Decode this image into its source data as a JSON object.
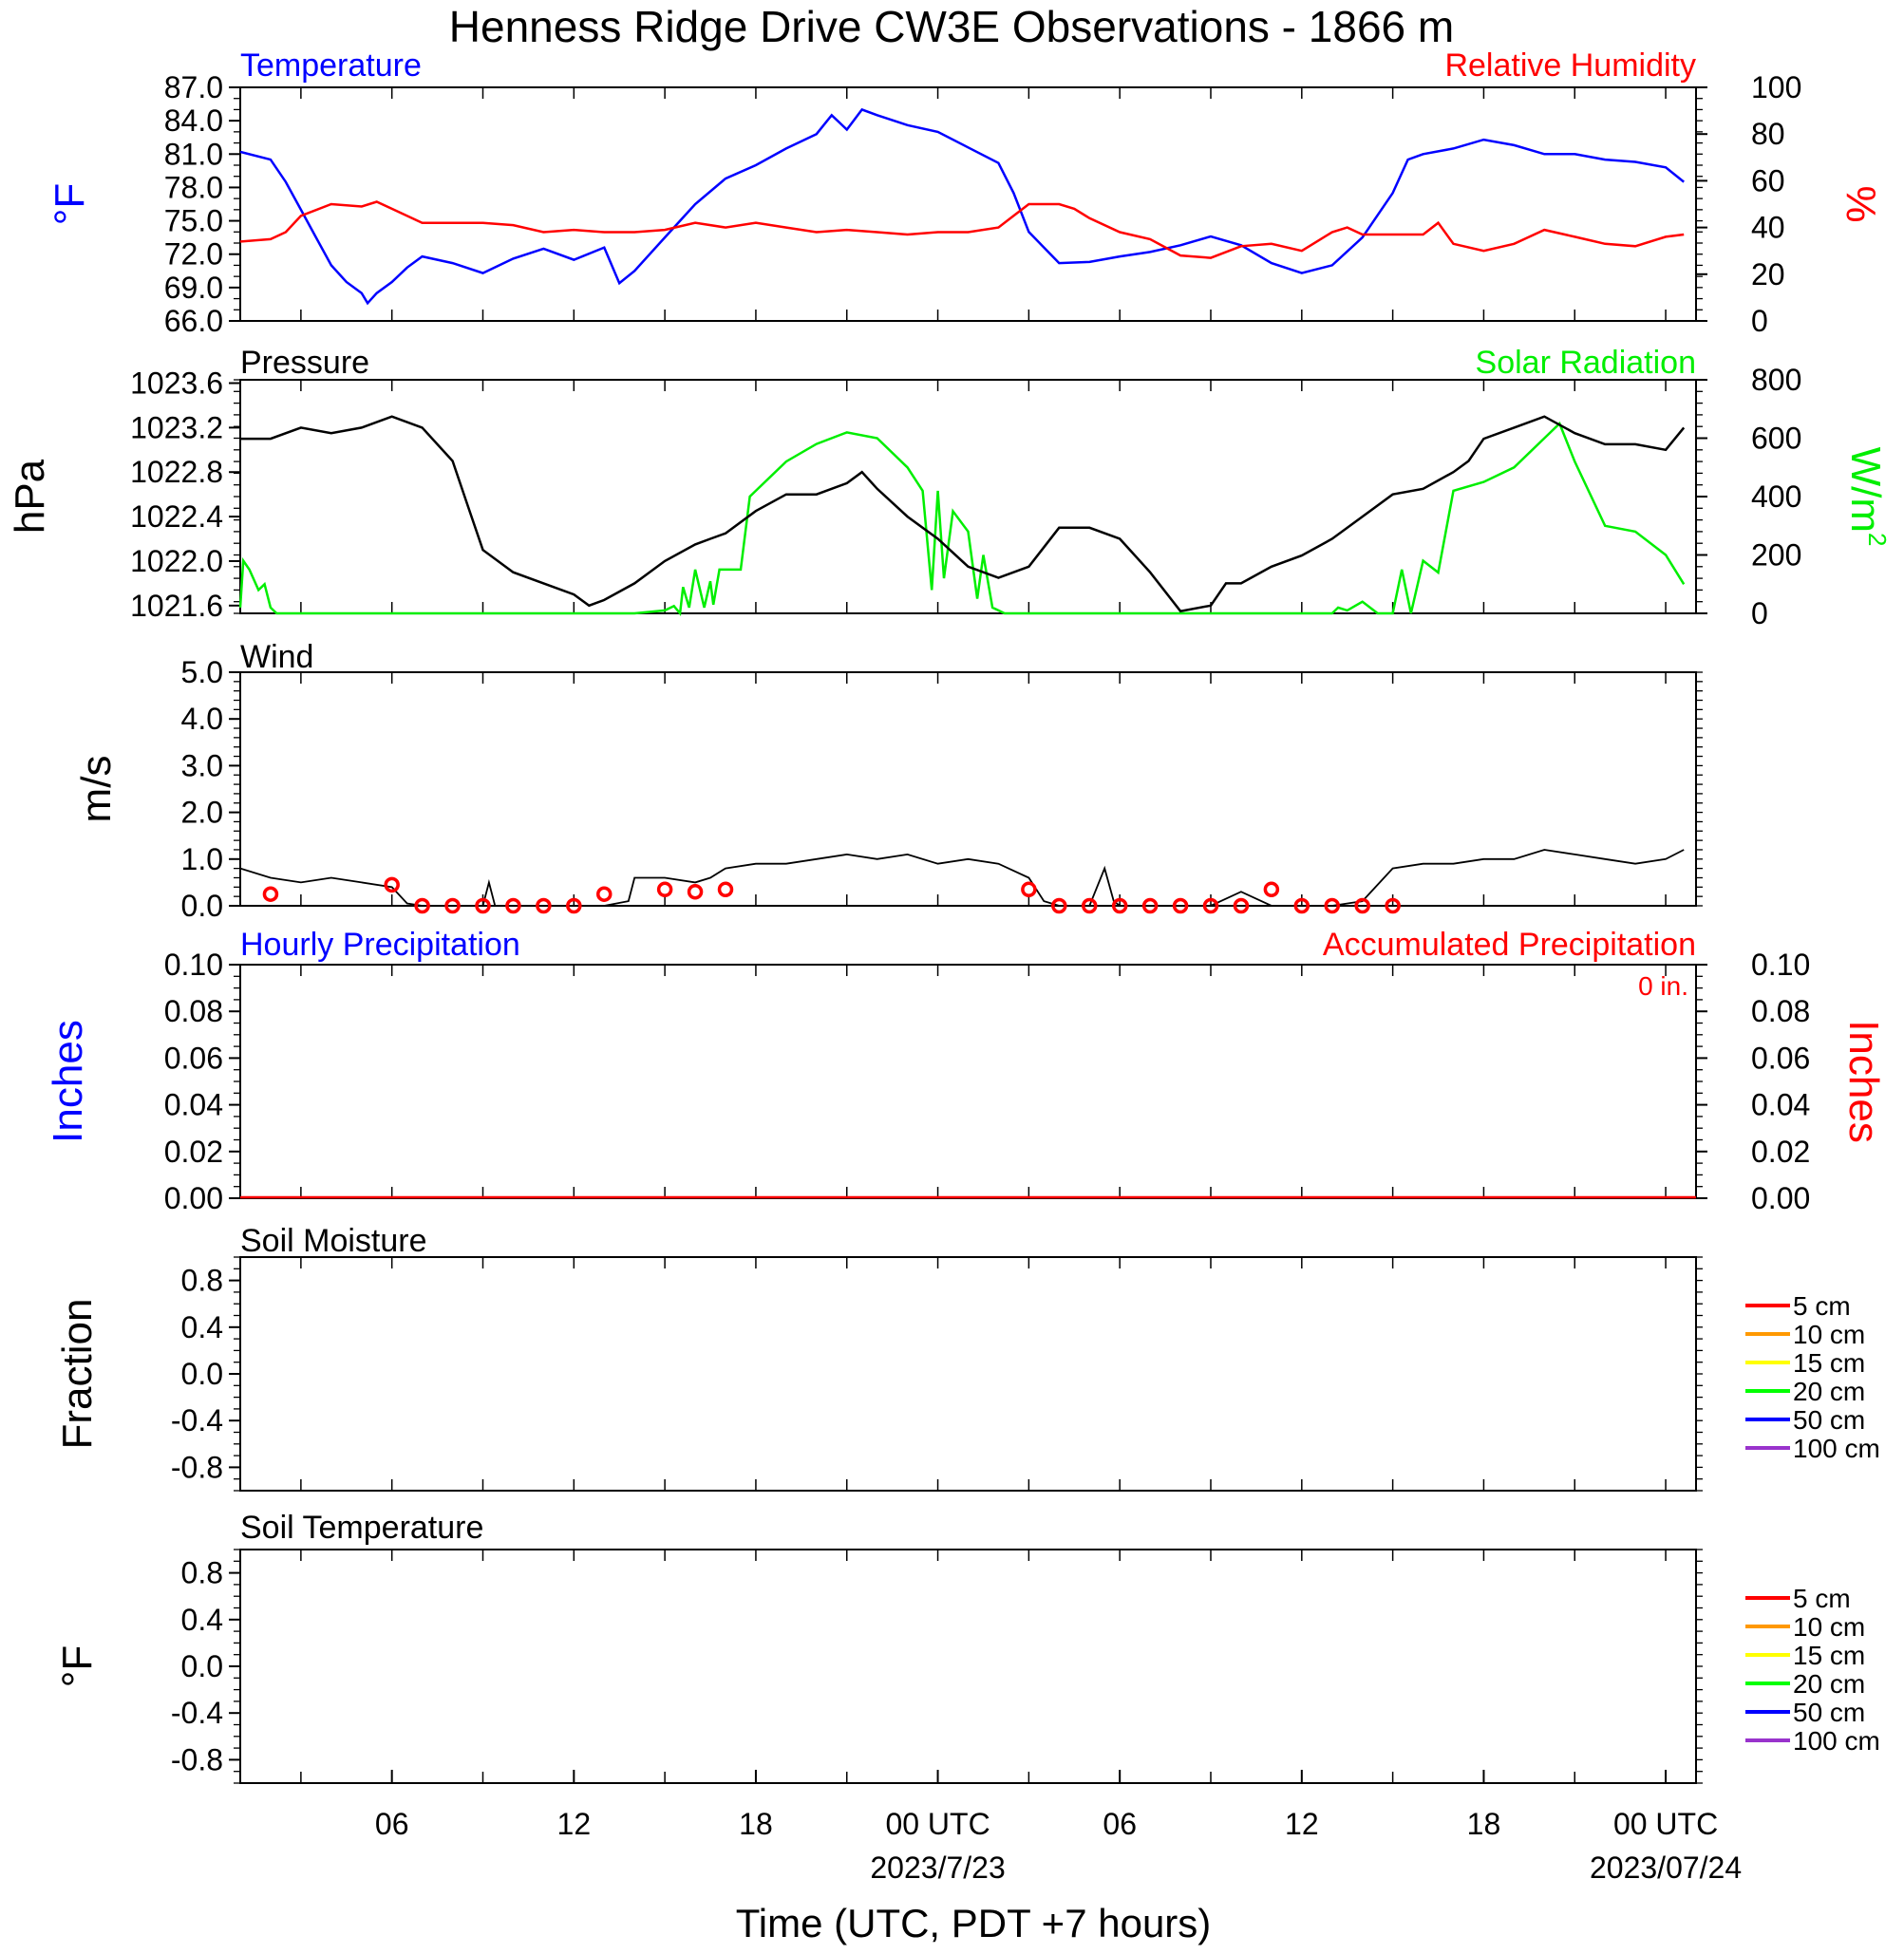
{
  "title": "Henness Ridge Drive CW3E Observations - 1866 m",
  "x_axis": {
    "label": "Time (UTC, PDT +7 hours)",
    "range_hours": [
      0,
      48
    ],
    "ticks": [
      {
        "h": 5,
        "label": "06",
        "date": ""
      },
      {
        "h": 11,
        "label": "12",
        "date": ""
      },
      {
        "h": 17,
        "label": "18",
        "date": ""
      },
      {
        "h": 23,
        "label": "00 UTC",
        "date": "2023/7/23"
      },
      {
        "h": 29,
        "label": "06",
        "date": ""
      },
      {
        "h": 35,
        "label": "12",
        "date": ""
      },
      {
        "h": 41,
        "label": "18",
        "date": ""
      },
      {
        "h": 47,
        "label": "00 UTC",
        "date": "2023/07/24"
      }
    ]
  },
  "colors": {
    "temperature": "#0000ff",
    "humidity": "#ff0000",
    "pressure": "#000000",
    "solar": "#00ee00",
    "wind": "#000000",
    "wind_marker": "#ff0000",
    "hourly_precip": "#0000ff",
    "accum_precip": "#ff0000"
  },
  "panels": {
    "temperature": {
      "left_title": "Temperature",
      "right_title": "Relative Humidity",
      "left_ylabel": "°F",
      "right_ylabel": "%",
      "left_ticks": [
        "87.0",
        "84.0",
        "81.0",
        "78.0",
        "75.0",
        "72.0",
        "69.0",
        "66.0"
      ],
      "right_ticks": [
        "100",
        "80",
        "60",
        "40",
        "20",
        "0"
      ]
    },
    "pressure": {
      "left_title": "Pressure",
      "right_title": "Solar Radiation",
      "left_ylabel": "hPa",
      "right_ylabel": "W/m",
      "right_ylabel_sup": "2",
      "left_ticks": [
        "1023.6",
        "1023.2",
        "1022.8",
        "1022.4",
        "1022.0",
        "1021.6"
      ],
      "right_ticks": [
        "800",
        "600",
        "400",
        "200",
        "0"
      ]
    },
    "wind": {
      "left_title": "Wind",
      "left_ylabel": "m/s",
      "left_ticks": [
        "5.0",
        "4.0",
        "3.0",
        "2.0",
        "1.0",
        "0.0"
      ]
    },
    "precip": {
      "left_title": "Hourly Precipitation",
      "right_title": "Accumulated Precipitation",
      "left_ylabel": "Inches",
      "right_ylabel": "Inches",
      "annotation": "0 in.",
      "left_ticks": [
        "0.10",
        "0.08",
        "0.06",
        "0.04",
        "0.02",
        "0.00"
      ],
      "right_ticks": [
        "0.10",
        "0.08",
        "0.06",
        "0.04",
        "0.02",
        "0.00"
      ]
    },
    "soil_moisture": {
      "left_title": "Soil Moisture",
      "left_ylabel": "Fraction",
      "left_ticks": [
        "0.8",
        "0.4",
        "0.0",
        "-0.4",
        "-0.8"
      ],
      "legend": [
        {
          "label": "5 cm",
          "color": "#ff0000"
        },
        {
          "label": "10 cm",
          "color": "#ff9900"
        },
        {
          "label": "15 cm",
          "color": "#ffff00"
        },
        {
          "label": "20 cm",
          "color": "#00ff00"
        },
        {
          "label": "50 cm",
          "color": "#0000ff"
        },
        {
          "label": "100 cm",
          "color": "#9933cc"
        }
      ]
    },
    "soil_temperature": {
      "left_title": "Soil Temperature",
      "left_ylabel": "°F",
      "left_ticks": [
        "0.8",
        "0.4",
        "0.0",
        "-0.4",
        "-0.8"
      ],
      "legend": [
        {
          "label": "5 cm",
          "color": "#ff0000"
        },
        {
          "label": "10 cm",
          "color": "#ff9900"
        },
        {
          "label": "15 cm",
          "color": "#ffff00"
        },
        {
          "label": "20 cm",
          "color": "#00ff00"
        },
        {
          "label": "50 cm",
          "color": "#0000ff"
        },
        {
          "label": "100 cm",
          "color": "#9933cc"
        }
      ]
    }
  },
  "chart_data": [
    {
      "type": "line",
      "x_unit": "hours since 2023/07/22 01 UTC",
      "series": [
        {
          "name": "Temperature",
          "unit": "°F",
          "axis": "left",
          "ylim": [
            66,
            87
          ],
          "x": [
            0,
            1,
            1.5,
            2,
            2.5,
            3,
            3.5,
            4,
            4.2,
            4.5,
            5,
            5.5,
            6,
            7,
            8,
            9,
            10,
            11,
            12,
            12.5,
            13,
            14,
            15,
            16,
            17,
            18,
            19,
            19.5,
            20,
            20.5,
            21,
            22,
            23,
            24,
            25,
            25.5,
            26,
            27,
            28,
            29,
            30,
            31,
            32,
            33,
            34,
            35,
            36,
            37,
            38,
            38.5,
            39,
            40,
            41,
            42,
            43,
            44,
            45,
            46,
            47,
            47.6
          ],
          "y": [
            81.2,
            80.5,
            78.5,
            76.0,
            73.5,
            71.0,
            69.5,
            68.5,
            67.6,
            68.5,
            69.5,
            70.8,
            71.8,
            71.2,
            70.3,
            71.6,
            72.5,
            71.5,
            72.6,
            69.4,
            70.5,
            73.5,
            76.5,
            78.8,
            80.0,
            81.5,
            82.8,
            84.5,
            83.2,
            85.0,
            84.5,
            83.6,
            83.0,
            81.6,
            80.2,
            77.5,
            74.0,
            71.2,
            71.3,
            71.8,
            72.2,
            72.8,
            73.6,
            72.8,
            71.2,
            70.3,
            71.0,
            73.5,
            77.5,
            80.5,
            81.0,
            81.5,
            82.3,
            81.8,
            81.0,
            81.0,
            80.5,
            80.3,
            79.8,
            78.5
          ]
        },
        {
          "name": "Relative Humidity",
          "unit": "%",
          "axis": "right",
          "ylim": [
            0,
            100
          ],
          "x": [
            0,
            1,
            1.5,
            2,
            3,
            4,
            4.5,
            5,
            6,
            7,
            8,
            9,
            10,
            11,
            12,
            13,
            14,
            15,
            16,
            17,
            18,
            19,
            20,
            21,
            22,
            23,
            24,
            25,
            25.5,
            26,
            27,
            27.5,
            28,
            29,
            30,
            31,
            32,
            33,
            34,
            35,
            36,
            36.5,
            37,
            38,
            39,
            39.5,
            40,
            41,
            42,
            43,
            44,
            45,
            46,
            47,
            47.6
          ],
          "y": [
            34,
            35,
            38,
            45,
            50,
            49,
            51,
            48,
            42,
            42,
            42,
            41,
            38,
            39,
            38,
            38,
            39,
            42,
            40,
            42,
            40,
            38,
            39,
            38,
            37,
            38,
            38,
            40,
            45,
            50,
            50,
            48,
            44,
            38,
            35,
            28,
            27,
            32,
            33,
            30,
            38,
            40,
            37,
            37,
            37,
            42,
            33,
            30,
            33,
            39,
            36,
            33,
            32,
            36,
            37
          ]
        }
      ]
    },
    {
      "type": "line",
      "x_unit": "hours since 2023/07/22 01 UTC",
      "series": [
        {
          "name": "Pressure",
          "unit": "hPa",
          "axis": "left",
          "ylim": [
            1021.53,
            1023.63
          ],
          "x": [
            0,
            1,
            2,
            3,
            4,
            5,
            6,
            7,
            7.5,
            8,
            9,
            10,
            11,
            11.5,
            12,
            13,
            14,
            15,
            15.5,
            16,
            17,
            18,
            19,
            20,
            20.5,
            21,
            22,
            23,
            24,
            25,
            26,
            27,
            28,
            29,
            30,
            31,
            32,
            32.5,
            33,
            34,
            35,
            36,
            37,
            38,
            39,
            40,
            40.5,
            41,
            42,
            43,
            44,
            45,
            46,
            47,
            47.6
          ],
          "y": [
            1023.1,
            1023.1,
            1023.2,
            1023.15,
            1023.2,
            1023.3,
            1023.2,
            1022.9,
            1022.5,
            1022.1,
            1021.9,
            1021.8,
            1021.7,
            1021.6,
            1021.65,
            1021.8,
            1022.0,
            1022.15,
            1022.2,
            1022.25,
            1022.45,
            1022.6,
            1022.6,
            1022.7,
            1022.8,
            1022.65,
            1022.4,
            1022.2,
            1021.95,
            1021.85,
            1021.95,
            1022.3,
            1022.3,
            1022.2,
            1021.9,
            1021.55,
            1021.6,
            1021.8,
            1021.8,
            1021.95,
            1022.05,
            1022.2,
            1022.4,
            1022.6,
            1022.65,
            1022.8,
            1022.9,
            1023.1,
            1023.2,
            1023.3,
            1023.15,
            1023.05,
            1023.05,
            1023.0,
            1023.2
          ]
        },
        {
          "name": "Solar Radiation",
          "unit": "W/m2",
          "axis": "right",
          "ylim": [
            0,
            800
          ],
          "x": [
            0,
            0.1,
            0.3,
            0.6,
            0.8,
            1.0,
            1.2,
            1.5,
            13,
            14,
            14.3,
            14.5,
            14.6,
            14.8,
            15,
            15.3,
            15.5,
            15.6,
            15.8,
            16.5,
            16.8,
            17,
            18,
            19,
            20,
            21,
            22,
            22.5,
            22.8,
            23,
            23.2,
            23.5,
            24,
            24.3,
            24.5,
            24.8,
            25,
            25.2,
            25.5,
            26,
            27,
            30,
            35,
            36,
            36.2,
            36.5,
            37,
            37.5,
            38,
            38.3,
            38.6,
            39,
            39.5,
            40,
            41,
            42,
            43,
            43.5,
            44,
            45,
            46,
            47,
            47.6
          ],
          "y": [
            20,
            180,
            150,
            80,
            100,
            20,
            0,
            0,
            0,
            10,
            25,
            0,
            90,
            20,
            150,
            20,
            110,
            30,
            150,
            150,
            400,
            420,
            520,
            580,
            620,
            600,
            500,
            420,
            80,
            420,
            120,
            350,
            280,
            50,
            200,
            20,
            10,
            0,
            0,
            0,
            0,
            0,
            0,
            0,
            20,
            10,
            40,
            0,
            0,
            150,
            0,
            180,
            140,
            420,
            450,
            500,
            600,
            650,
            520,
            300,
            280,
            200,
            100
          ]
        }
      ]
    },
    {
      "type": "line",
      "x_unit": "hours since 2023/07/22 01 UTC",
      "series": [
        {
          "name": "Wind",
          "unit": "m/s",
          "ylim": [
            0,
            5
          ],
          "x": [
            0,
            1,
            2,
            3,
            4,
            5,
            5.5,
            6,
            8,
            8.2,
            8.4,
            10,
            12,
            12.8,
            13,
            14,
            15,
            15.5,
            16,
            17,
            18,
            19,
            20,
            21,
            22,
            23,
            24,
            25,
            26,
            26.5,
            27,
            28,
            28.5,
            28.8,
            29,
            30,
            31,
            32,
            33,
            34,
            35,
            36,
            37,
            38,
            39,
            40,
            41,
            42,
            43,
            44,
            45,
            46,
            47,
            47.6
          ],
          "y": [
            0.8,
            0.6,
            0.5,
            0.6,
            0.5,
            0.4,
            0.05,
            0.0,
            0.0,
            0.5,
            0.0,
            0.0,
            0.0,
            0.1,
            0.6,
            0.6,
            0.5,
            0.6,
            0.8,
            0.9,
            0.9,
            1.0,
            1.1,
            1.0,
            1.1,
            0.9,
            1.0,
            0.9,
            0.6,
            0.1,
            0.0,
            0.0,
            0.8,
            0.1,
            0.0,
            0.0,
            0.0,
            0.0,
            0.3,
            0.0,
            0.0,
            0.0,
            0.1,
            0.8,
            0.9,
            0.9,
            1.0,
            1.0,
            1.2,
            1.1,
            1.0,
            0.9,
            1.0,
            1.2
          ]
        },
        {
          "name": "Hourly mean (markers)",
          "x": [
            1,
            5,
            6,
            7,
            8,
            9,
            10,
            11,
            12,
            14,
            15,
            16,
            26,
            27,
            28,
            29,
            30,
            31,
            32,
            33,
            34,
            35,
            36,
            37,
            38
          ],
          "y": [
            0.25,
            0.45,
            0.0,
            0.0,
            0.0,
            0.0,
            0.0,
            0.0,
            0.25,
            0.35,
            0.3,
            0.35,
            0.35,
            0.0,
            0.0,
            0.0,
            0.0,
            0.0,
            0.0,
            0.0,
            0.35,
            0.0,
            0.0,
            0.0,
            0.0
          ]
        }
      ]
    },
    {
      "type": "bar",
      "x_unit": "hours since 2023/07/22 01 UTC",
      "series": [
        {
          "name": "Hourly Precipitation",
          "unit": "in",
          "values": [
            0
          ],
          "ylim": [
            0,
            0.1
          ]
        },
        {
          "name": "Accumulated Precipitation",
          "unit": "in",
          "values": [
            0
          ],
          "ylim": [
            0,
            0.1
          ]
        }
      ]
    },
    {
      "type": "line",
      "series": [],
      "ylim": [
        -1,
        1
      ]
    },
    {
      "type": "line",
      "series": [],
      "ylim": [
        -1,
        1
      ]
    }
  ]
}
